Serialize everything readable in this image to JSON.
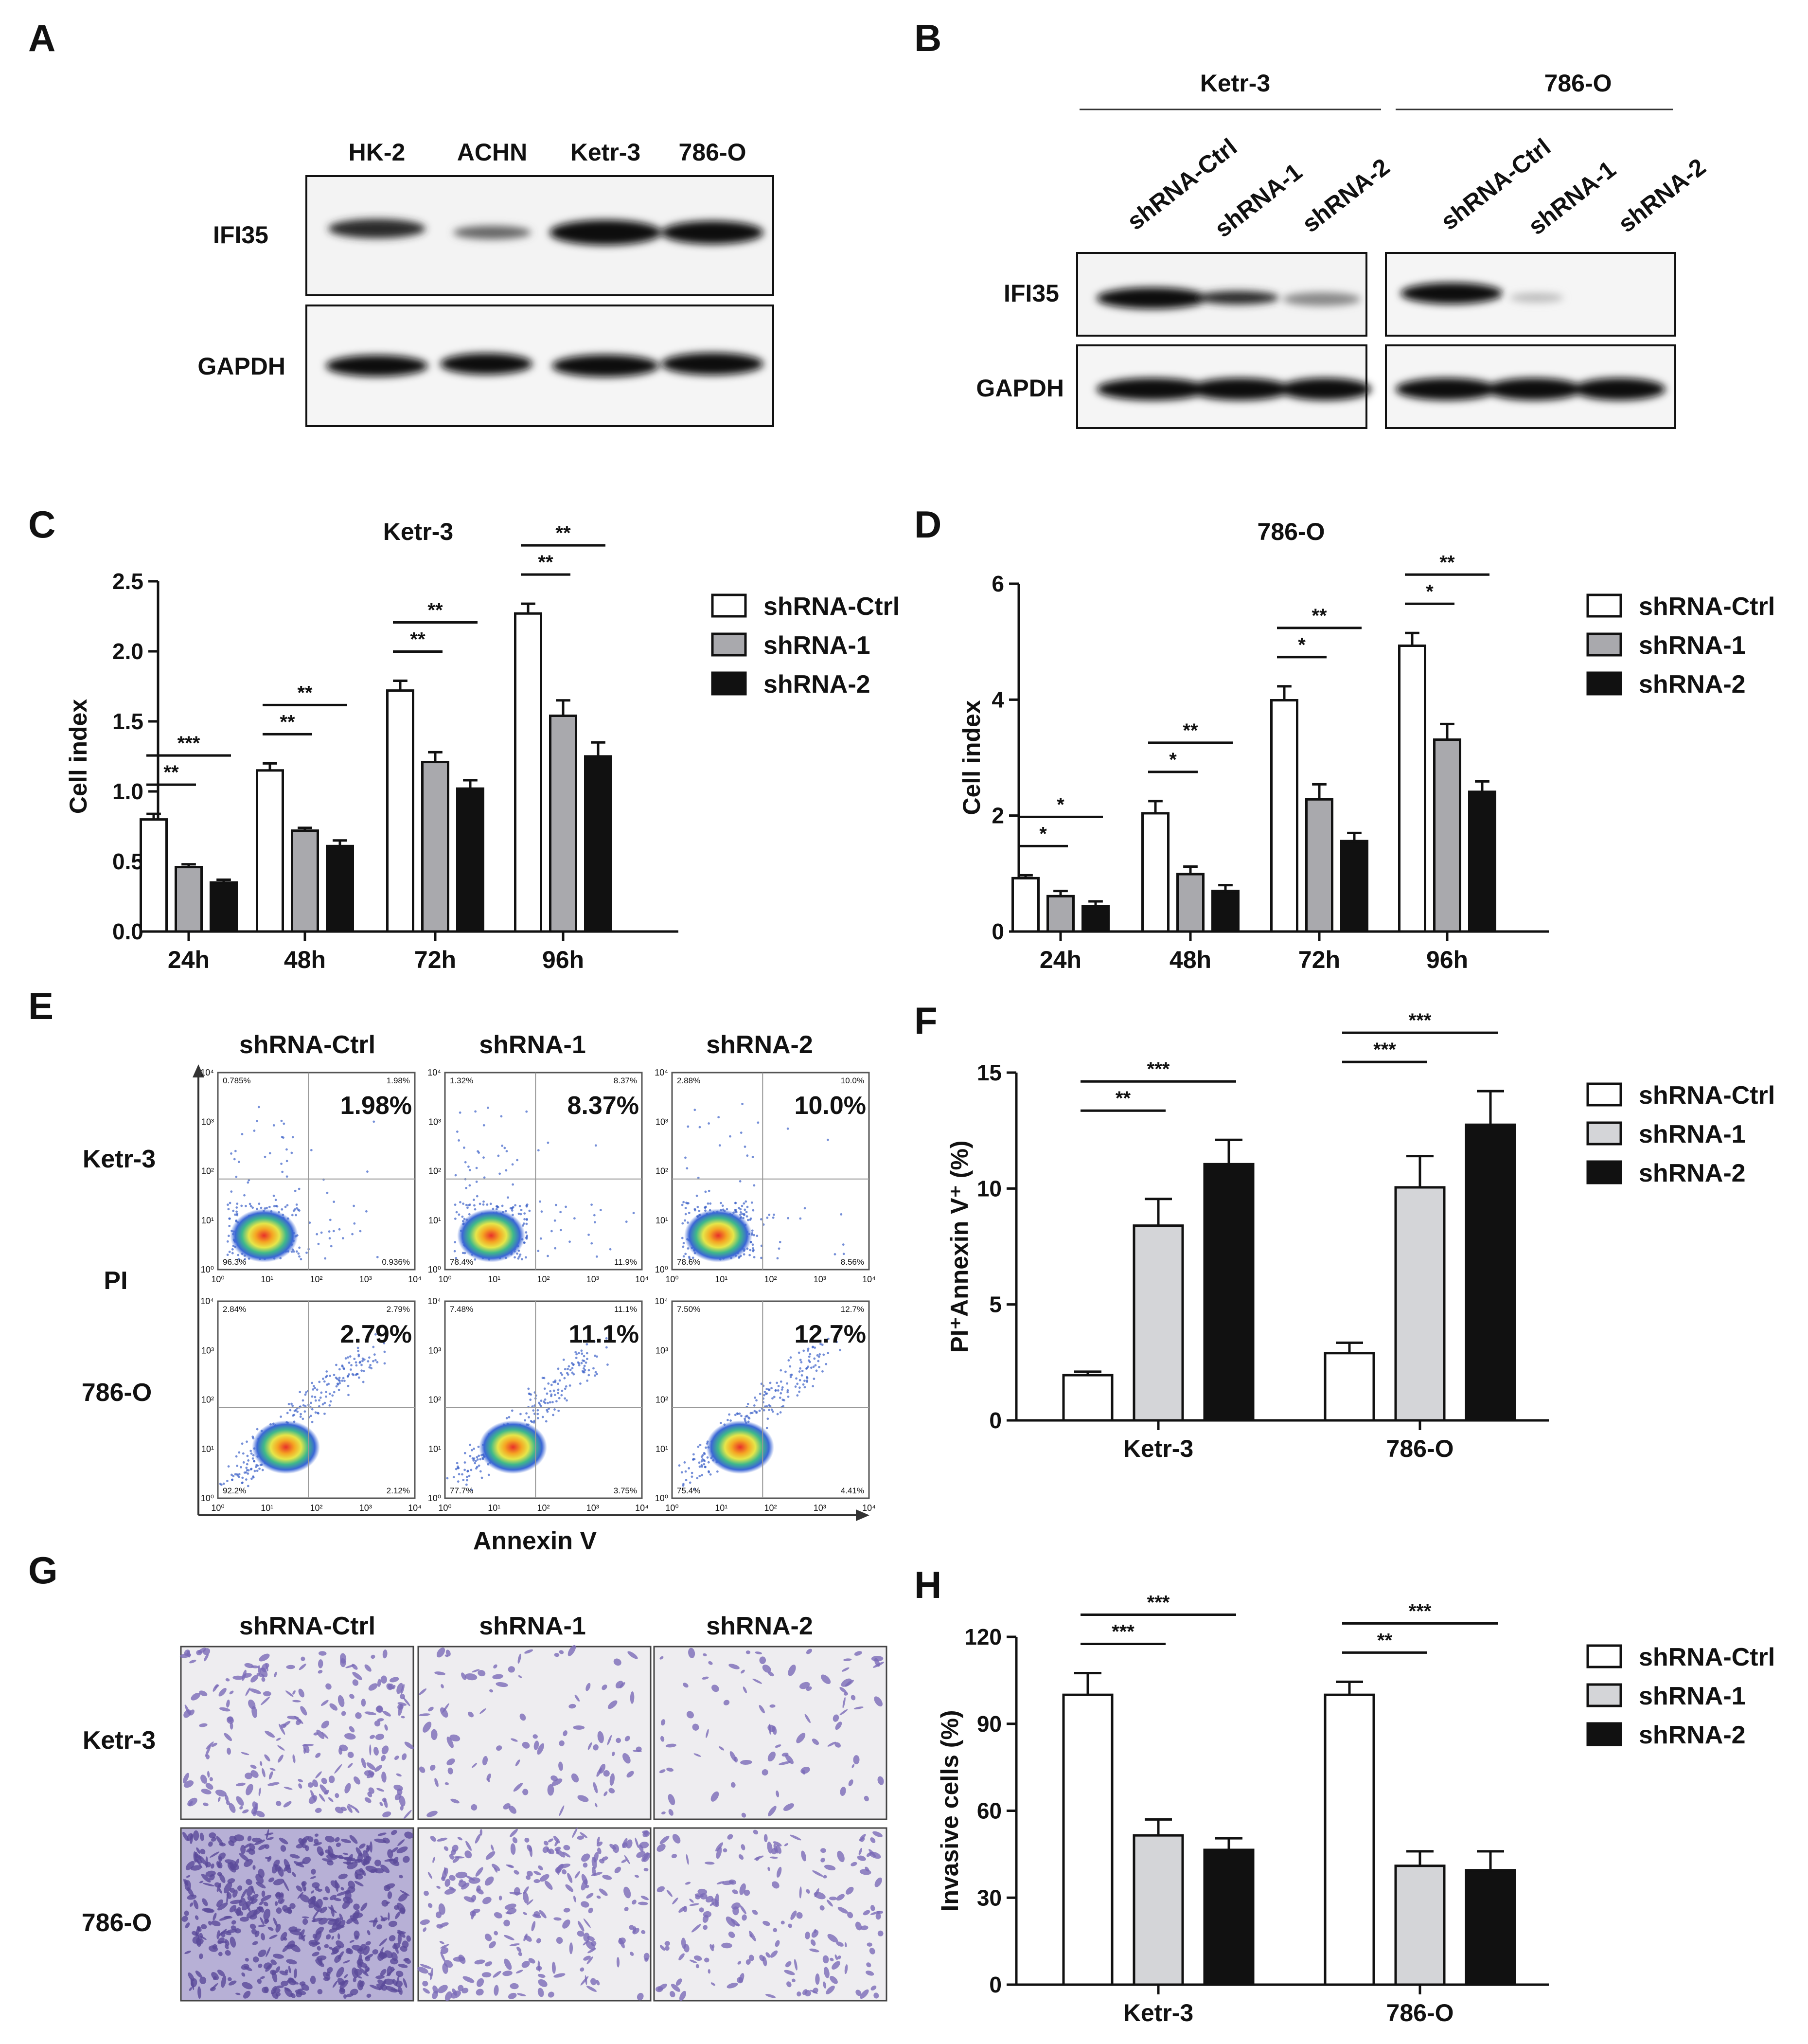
{
  "panels": {
    "A": {
      "label": "A",
      "cell_lines": [
        "HK-2",
        "ACHN",
        "Ketr-3",
        "786-O"
      ],
      "rows": [
        "IFI35",
        "GAPDH"
      ]
    },
    "B": {
      "label": "B",
      "groups": [
        "Ketr-3",
        "786-O"
      ],
      "lanes": [
        "shRNA-Ctrl",
        "shRNA-1",
        "shRNA-2",
        "shRNA-Ctrl",
        "shRNA-1",
        "shRNA-2"
      ],
      "rows": [
        "IFI35",
        "GAPDH"
      ]
    },
    "E": {
      "label": "E",
      "columns": [
        "shRNA-Ctrl",
        "shRNA-1",
        "shRNA-2"
      ],
      "rows": [
        "Ketr-3",
        "786-O"
      ],
      "ylabel": "PI",
      "xlabel": "Annexin V",
      "big_percents": [
        [
          "1.98%",
          "8.37%",
          "10.0%"
        ],
        [
          "2.79%",
          "11.1%",
          "12.7%"
        ]
      ],
      "quadrants": [
        [
          [
            "0.785%",
            "1.98%",
            "96.3%",
            "0.936%"
          ],
          [
            "1.32%",
            "8.37%",
            "78.4%",
            "11.9%"
          ],
          [
            "2.88%",
            "10.0%",
            "78.6%",
            "8.56%"
          ]
        ],
        [
          [
            "2.84%",
            "2.79%",
            "92.2%",
            "2.12%"
          ],
          [
            "7.48%",
            "11.1%",
            "77.7%",
            "3.75%"
          ],
          [
            "7.50%",
            "12.7%",
            "75.4%",
            "4.41%"
          ]
        ]
      ],
      "axis_ticks": [
        "10⁰",
        "10¹",
        "10²",
        "10³",
        "10⁴"
      ]
    },
    "G": {
      "label": "G",
      "columns": [
        "shRNA-Ctrl",
        "shRNA-1",
        "shRNA-2"
      ],
      "rows": [
        "Ketr-3",
        "786-O"
      ]
    }
  },
  "colors": {
    "ctrl": "#ffffff",
    "sh1": "#a9a9ad",
    "sh2": "#111111",
    "sh1_light": "#d4d5d8",
    "ink": "#111111",
    "stain": "#6a5aa8"
  },
  "chart_data": [
    {
      "panel": "C",
      "type": "bar",
      "title": "Ketr-3",
      "xlabel": "",
      "ylabel": "Cell index",
      "ylim": [
        0,
        2.5
      ],
      "yticks": [
        "0.0",
        "0.5",
        "1.0",
        "1.5",
        "2.0",
        "2.5"
      ],
      "categories": [
        "24h",
        "48h",
        "72h",
        "96h"
      ],
      "series": [
        {
          "name": "shRNA-Ctrl",
          "values": [
            0.8,
            1.15,
            1.72,
            2.27
          ],
          "errors": [
            0.04,
            0.05,
            0.07,
            0.07
          ]
        },
        {
          "name": "shRNA-1",
          "values": [
            0.46,
            0.72,
            1.21,
            1.54
          ],
          "errors": [
            0.02,
            0.02,
            0.07,
            0.11
          ]
        },
        {
          "name": "shRNA-2",
          "values": [
            0.35,
            0.61,
            1.02,
            1.25
          ],
          "errors": [
            0.02,
            0.04,
            0.06,
            0.1
          ]
        }
      ],
      "annotations": [
        {
          "group": 0,
          "label": "**"
        },
        {
          "group": 0,
          "label": "***"
        },
        {
          "group": 1,
          "label": "**"
        },
        {
          "group": 1,
          "label": "**"
        },
        {
          "group": 2,
          "label": "**"
        },
        {
          "group": 2,
          "label": "**"
        },
        {
          "group": 3,
          "label": "**"
        },
        {
          "group": 3,
          "label": "**"
        }
      ],
      "legend": "right"
    },
    {
      "panel": "D",
      "type": "bar",
      "title": "786-O",
      "xlabel": "",
      "ylabel": "Cell index",
      "ylim": [
        0,
        6
      ],
      "yticks": [
        "0",
        "2",
        "4",
        "6"
      ],
      "categories": [
        "24h",
        "48h",
        "72h",
        "96h"
      ],
      "series": [
        {
          "name": "shRNA-Ctrl",
          "values": [
            0.92,
            2.04,
            3.99,
            4.93
          ],
          "errors": [
            0.05,
            0.21,
            0.24,
            0.22
          ]
        },
        {
          "name": "shRNA-1",
          "values": [
            0.61,
            0.99,
            2.28,
            3.31
          ],
          "errors": [
            0.09,
            0.13,
            0.26,
            0.27
          ]
        },
        {
          "name": "shRNA-2",
          "values": [
            0.44,
            0.7,
            1.56,
            2.41
          ],
          "errors": [
            0.08,
            0.1,
            0.14,
            0.18
          ]
        }
      ],
      "annotations": [
        {
          "group": 0,
          "label": "*"
        },
        {
          "group": 0,
          "label": "*"
        },
        {
          "group": 1,
          "label": "*"
        },
        {
          "group": 1,
          "label": "**"
        },
        {
          "group": 2,
          "label": "*"
        },
        {
          "group": 2,
          "label": "**"
        },
        {
          "group": 3,
          "label": "*"
        },
        {
          "group": 3,
          "label": "**"
        }
      ],
      "legend": "right"
    },
    {
      "panel": "F",
      "type": "bar",
      "title": "",
      "xlabel": "",
      "ylabel": "PI⁺Annexin V⁺ (%)",
      "ylim": [
        0,
        15
      ],
      "yticks": [
        "0",
        "5",
        "10",
        "15"
      ],
      "categories": [
        "Ketr-3",
        "786-O"
      ],
      "series": [
        {
          "name": "shRNA-Ctrl",
          "values": [
            1.95,
            2.9
          ],
          "errors": [
            0.15,
            0.45
          ]
        },
        {
          "name": "shRNA-1",
          "values": [
            8.4,
            10.05
          ],
          "errors": [
            1.15,
            1.35
          ]
        },
        {
          "name": "shRNA-2",
          "values": [
            11.05,
            12.75
          ],
          "errors": [
            1.05,
            1.45
          ]
        }
      ],
      "annotations": [
        {
          "group": 0,
          "label": "**"
        },
        {
          "group": 0,
          "label": "***"
        },
        {
          "group": 1,
          "label": "***"
        },
        {
          "group": 1,
          "label": "***"
        }
      ],
      "legend": "right"
    },
    {
      "panel": "H",
      "type": "bar",
      "title": "",
      "xlabel": "",
      "ylabel": "Invasive cells (%)",
      "ylim": [
        0,
        120
      ],
      "yticks": [
        "0",
        "30",
        "60",
        "90",
        "120"
      ],
      "categories": [
        "Ketr-3",
        "786-O"
      ],
      "series": [
        {
          "name": "shRNA-Ctrl",
          "values": [
            100,
            100
          ],
          "errors": [
            7.5,
            4.5
          ]
        },
        {
          "name": "shRNA-1",
          "values": [
            51.5,
            41
          ],
          "errors": [
            5.5,
            5
          ]
        },
        {
          "name": "shRNA-2",
          "values": [
            46.5,
            39.5
          ],
          "errors": [
            4,
            6.5
          ]
        }
      ],
      "annotations": [
        {
          "group": 0,
          "label": "***"
        },
        {
          "group": 0,
          "label": "***"
        },
        {
          "group": 1,
          "label": "**"
        },
        {
          "group": 1,
          "label": "***"
        }
      ],
      "legend": "right"
    }
  ]
}
